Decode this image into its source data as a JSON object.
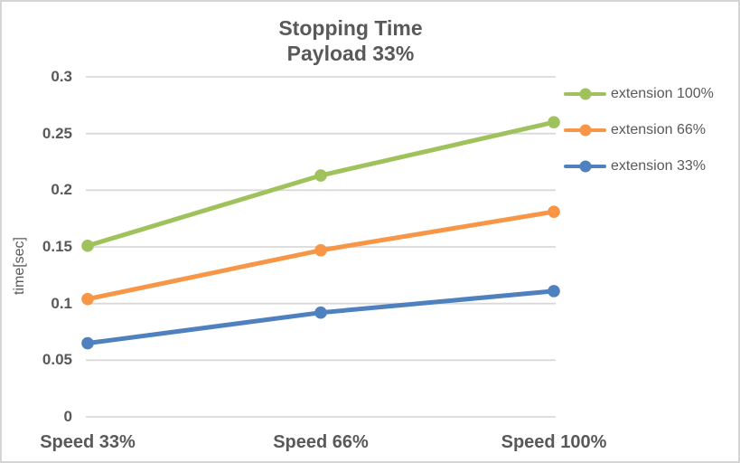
{
  "chart_data": {
    "type": "line",
    "title": "Stopping Time",
    "subtitle": "Payload 33%",
    "categories": [
      "Speed 33%",
      "Speed 66%",
      "Speed 100%"
    ],
    "series": [
      {
        "name": "extension 100%",
        "color": "#9FC25C",
        "values": [
          0.151,
          0.213,
          0.26
        ]
      },
      {
        "name": "extension 66%",
        "color": "#F79646",
        "values": [
          0.104,
          0.147,
          0.181
        ]
      },
      {
        "name": "extension 33%",
        "color": "#4E81BD",
        "values": [
          0.065,
          0.092,
          0.111
        ]
      }
    ],
    "xlabel": "",
    "ylabel": "time[sec]",
    "ylim": [
      0,
      0.3
    ],
    "yticks": [
      0,
      0.05,
      0.1,
      0.15,
      0.2,
      0.25,
      0.3
    ],
    "ytick_labels": [
      "0",
      "0.05",
      "0.1",
      "0.15",
      "0.2",
      "0.25",
      "0.3"
    ],
    "grid": true,
    "legend_position": "right",
    "marker": "circle"
  },
  "styles": {
    "text_color": "#595959",
    "gridline_color": "#D9D9D9",
    "background": "#FFFFFF",
    "border_color": "#D5D5D5"
  }
}
